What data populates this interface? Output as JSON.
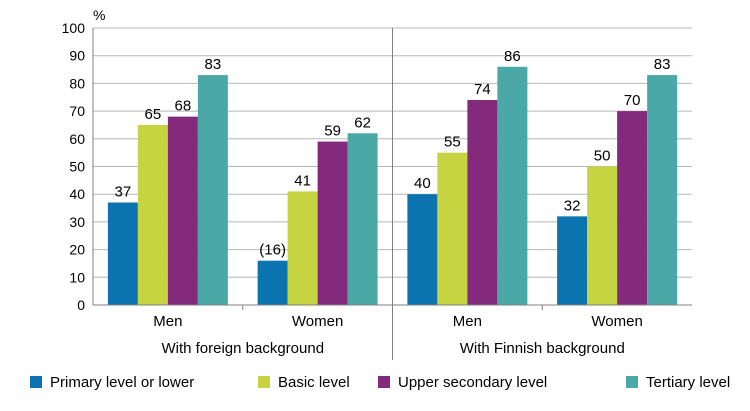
{
  "chart_data": {
    "type": "bar",
    "ylabel": "%",
    "ylim": [
      0,
      100
    ],
    "yticks": [
      0,
      10,
      20,
      30,
      40,
      50,
      60,
      70,
      80,
      90,
      100
    ],
    "grid": true,
    "legend_position": "bottom",
    "groups": [
      {
        "label": "With foreign background",
        "categories": [
          {
            "label": "Men",
            "values": [
              37,
              65,
              68,
              83
            ],
            "value_labels": [
              "37",
              "65",
              "68",
              "83"
            ]
          },
          {
            "label": "Women",
            "values": [
              16,
              41,
              59,
              62
            ],
            "value_labels": [
              "(16)",
              "41",
              "59",
              "62"
            ]
          }
        ]
      },
      {
        "label": "With Finnish background",
        "categories": [
          {
            "label": "Men",
            "values": [
              40,
              55,
              74,
              86
            ],
            "value_labels": [
              "40",
              "55",
              "74",
              "86"
            ]
          },
          {
            "label": "Women",
            "values": [
              32,
              50,
              70,
              83
            ],
            "value_labels": [
              "32",
              "50",
              "70",
              "83"
            ]
          }
        ]
      }
    ],
    "series": [
      {
        "name": "Primary level or lower",
        "color": "#0a73b0"
      },
      {
        "name": "Basic level",
        "color": "#c5d440"
      },
      {
        "name": "Upper secondary level",
        "color": "#842a7c"
      },
      {
        "name": "Tertiary level",
        "color": "#4aa9a7"
      }
    ]
  }
}
